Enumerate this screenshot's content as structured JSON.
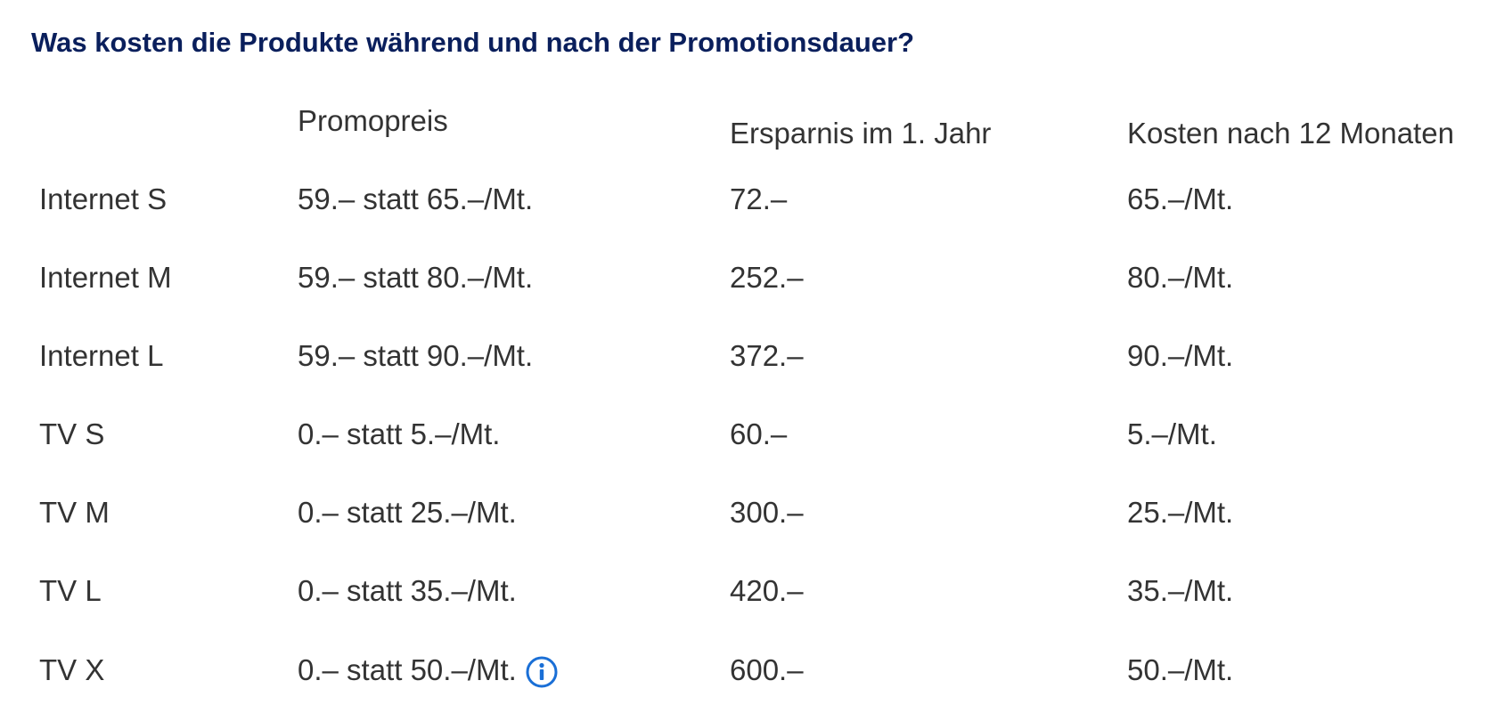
{
  "title": "Was kosten die Produkte während und nach der Promotionsdauer?",
  "columns": {
    "promo": "Promopreis",
    "saving": "Ersparnis im 1. Jahr",
    "after": "Kosten nach 12 Monaten"
  },
  "rows": [
    {
      "name": "Internet S",
      "promo": "59.– statt 65.–/Mt.",
      "saving": "72.–",
      "after": "65.–/Mt."
    },
    {
      "name": "Internet M",
      "promo": "59.– statt 80.–/Mt.",
      "saving": "252.–",
      "after": "80.–/Mt."
    },
    {
      "name": "Internet L",
      "promo": "59.– statt 90.–/Mt.",
      "saving": "372.–",
      "after": "90.–/Mt."
    },
    {
      "name": "TV S",
      "promo": "0.– statt 5.–/Mt.",
      "saving": "60.–",
      "after": "5.–/Mt."
    },
    {
      "name": "TV M",
      "promo": "0.– statt 25.–/Mt.",
      "saving": "300.–",
      "after": "25.–/Mt."
    },
    {
      "name": "TV L",
      "promo": "0.– statt 35.–/Mt.",
      "saving": "420.–",
      "after": "35.–/Mt."
    },
    {
      "name": "TV X",
      "promo": "0.– statt 50.–/Mt.",
      "saving": "600.–",
      "after": "50.–/Mt."
    }
  ],
  "icons": {
    "info": "info-icon",
    "accent_color": "#1a6fd6"
  },
  "colors": {
    "heading": "#0a1f5c",
    "text": "#333333"
  }
}
